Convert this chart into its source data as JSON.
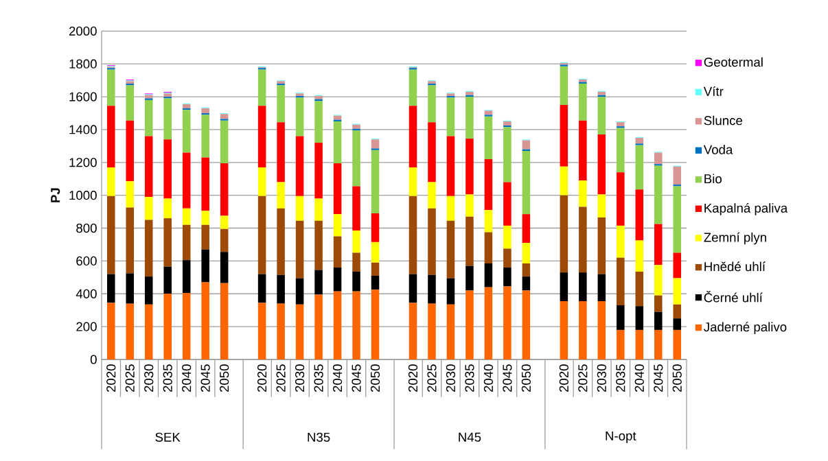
{
  "chart_data": {
    "type": "bar",
    "stacked": true,
    "ylabel": "PJ",
    "categories": [
      "2020",
      "2025",
      "2030",
      "2035",
      "2040",
      "2045",
      "2050",
      null,
      "2020",
      "2025",
      "2030",
      "2035",
      "2040",
      "2045",
      "2050",
      null,
      "2020",
      "2025",
      "2030",
      "2035",
      "2040",
      "2045",
      "2050",
      null,
      "2020",
      "2025",
      "2030",
      "2035",
      "2040",
      "2045",
      "2050"
    ],
    "annotations": [
      "SEK",
      "N35",
      "N45",
      "N-opt"
    ],
    "ylim": [
      0,
      2000
    ],
    "yticks": [
      0,
      200,
      400,
      600,
      800,
      1000,
      1200,
      1400,
      1600,
      1800,
      2000
    ],
    "grid": "y",
    "legend": "right",
    "series": [
      {
        "name": "Jaderné palivo",
        "color": "#ff6600",
        "values": [
          345,
          340,
          335,
          400,
          405,
          470,
          465,
          null,
          345,
          340,
          335,
          395,
          415,
          415,
          425,
          null,
          345,
          340,
          335,
          420,
          440,
          445,
          420,
          null,
          355,
          355,
          355,
          180,
          180,
          180,
          180
        ]
      },
      {
        "name": "Černé uhlí",
        "color": "#000000",
        "values": [
          175,
          185,
          170,
          165,
          200,
          200,
          190,
          null,
          175,
          175,
          160,
          150,
          145,
          120,
          85,
          null,
          175,
          175,
          160,
          150,
          145,
          115,
          85,
          null,
          175,
          175,
          165,
          150,
          145,
          110,
          70
        ]
      },
      {
        "name": "Hnědé uhlí",
        "color": "#9c4a06",
        "values": [
          475,
          400,
          345,
          295,
          215,
          150,
          140,
          null,
          475,
          405,
          350,
          300,
          190,
          115,
          80,
          null,
          475,
          405,
          350,
          300,
          190,
          115,
          80,
          null,
          470,
          400,
          345,
          290,
          210,
          100,
          85
        ]
      },
      {
        "name": "Zemní plyn",
        "color": "#ffff00",
        "values": [
          175,
          160,
          140,
          120,
          100,
          85,
          80,
          null,
          175,
          160,
          150,
          135,
          135,
          135,
          125,
          null,
          175,
          160,
          150,
          135,
          135,
          140,
          125,
          null,
          175,
          160,
          140,
          195,
          190,
          185,
          160
        ]
      },
      {
        "name": "Kapalná paliva",
        "color": "#ff0000",
        "values": [
          375,
          370,
          370,
          360,
          340,
          325,
          320,
          null,
          375,
          365,
          365,
          340,
          310,
          270,
          175,
          null,
          375,
          365,
          365,
          340,
          310,
          265,
          175,
          null,
          375,
          365,
          365,
          325,
          310,
          250,
          155
        ]
      },
      {
        "name": "Bio",
        "color": "#92d050",
        "values": [
          220,
          215,
          220,
          250,
          260,
          260,
          260,
          null,
          220,
          225,
          235,
          255,
          255,
          340,
          385,
          null,
          220,
          225,
          235,
          255,
          260,
          335,
          385,
          null,
          235,
          225,
          230,
          270,
          270,
          355,
          405
        ]
      },
      {
        "name": "Voda",
        "color": "#0070c0",
        "values": [
          10,
          10,
          10,
          10,
          10,
          10,
          10,
          null,
          10,
          10,
          10,
          10,
          10,
          10,
          10,
          null,
          10,
          10,
          10,
          10,
          10,
          10,
          10,
          null,
          10,
          10,
          10,
          10,
          10,
          10,
          10
        ]
      },
      {
        "name": "Slunce",
        "color": "#d99594",
        "values": [
          7,
          15,
          20,
          20,
          25,
          30,
          30,
          null,
          5,
          15,
          15,
          20,
          25,
          25,
          55,
          null,
          5,
          15,
          15,
          20,
          25,
          25,
          55,
          null,
          10,
          15,
          20,
          25,
          35,
          70,
          110
        ]
      },
      {
        "name": "Vítr",
        "color": "#66ffff",
        "values": [
          5,
          5,
          5,
          5,
          5,
          5,
          5,
          null,
          5,
          5,
          5,
          5,
          5,
          5,
          5,
          null,
          5,
          5,
          5,
          5,
          5,
          5,
          5,
          null,
          5,
          5,
          5,
          5,
          5,
          5,
          5
        ]
      },
      {
        "name": "Geotermal",
        "color": "#ff00ff",
        "values": [
          5,
          5,
          5,
          5,
          0,
          0,
          0,
          null,
          0,
          0,
          0,
          0,
          0,
          0,
          0,
          null,
          0,
          0,
          0,
          0,
          0,
          0,
          0,
          null,
          0,
          0,
          0,
          0,
          0,
          0,
          0
        ]
      }
    ]
  }
}
